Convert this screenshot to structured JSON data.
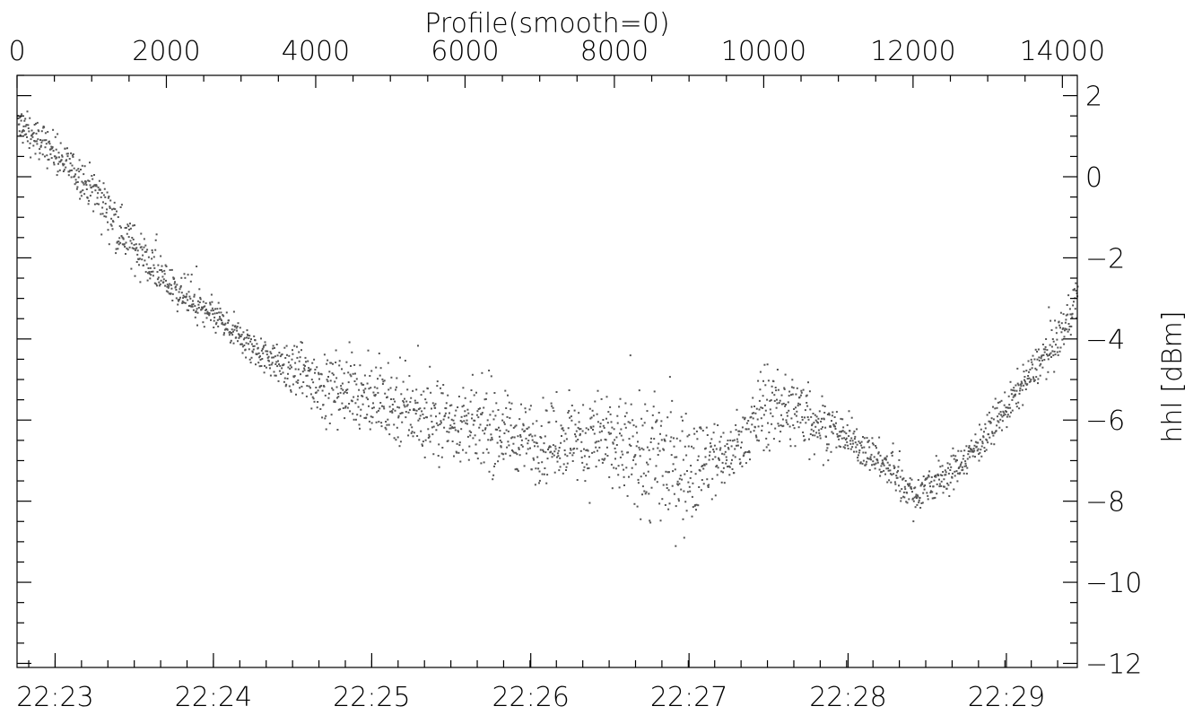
{
  "chart_data": {
    "type": "scatter",
    "title": "Profile(smooth=0)",
    "ylabel": "hhl [dBm]",
    "xlabel": "",
    "top_axis": {
      "range": [
        0,
        14200
      ],
      "ticks": [
        0,
        2000,
        4000,
        6000,
        8000,
        10000,
        12000,
        14000
      ],
      "tick_labels": [
        "0",
        "2000",
        "4000",
        "6000",
        "8000",
        "10000",
        "12000",
        "14000"
      ]
    },
    "bottom_axis": {
      "tick_labels": [
        "22:23",
        "22:24",
        "22:25",
        "22:26",
        "22:27",
        "22:28",
        "22:29"
      ],
      "tick_positions": [
        510,
        2630,
        4750,
        6880,
        9000,
        11130,
        13250
      ]
    },
    "ylim": [
      -12.1,
      2.5
    ],
    "y_ticks": [
      2,
      0,
      -2,
      -4,
      -6,
      -8,
      -10,
      -12
    ],
    "y_tick_labels": [
      "2",
      "0",
      "−2",
      "−4",
      "−6",
      "−8",
      "−10",
      "−12"
    ],
    "grid": false,
    "marker_color": "#555555",
    "trend": {
      "x": [
        0,
        500,
        1000,
        1500,
        2000,
        2500,
        3000,
        3500,
        4000,
        4500,
        5000,
        5500,
        6000,
        6500,
        7000,
        7500,
        8000,
        8500,
        9000,
        9500,
        10000,
        10500,
        11000,
        11500,
        12000,
        12500,
        13000,
        13500,
        14000,
        14200
      ],
      "y": [
        1.3,
        0.6,
        -0.3,
        -1.6,
        -2.6,
        -3.3,
        -4.0,
        -4.6,
        -5.0,
        -5.3,
        -5.6,
        -5.9,
        -6.1,
        -6.3,
        -6.5,
        -6.5,
        -6.6,
        -7.0,
        -7.1,
        -6.9,
        -5.7,
        -5.8,
        -6.3,
        -6.9,
        -7.8,
        -7.3,
        -6.3,
        -5.0,
        -3.8,
        -2.8
      ],
      "spread": [
        0.45,
        0.45,
        0.5,
        0.55,
        0.45,
        0.45,
        0.45,
        0.5,
        0.8,
        0.95,
        0.95,
        0.95,
        0.95,
        0.95,
        0.9,
        0.9,
        1.2,
        1.6,
        1.3,
        0.7,
        0.9,
        0.9,
        0.5,
        0.45,
        0.5,
        0.45,
        0.45,
        0.45,
        0.5,
        0.5
      ]
    },
    "point_count": 2600
  }
}
